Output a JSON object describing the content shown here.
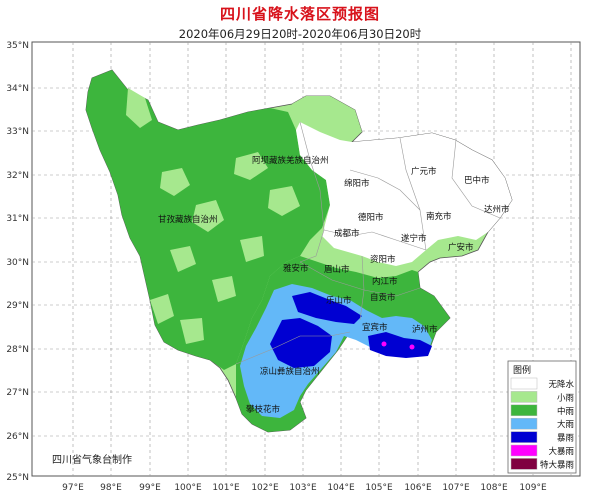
{
  "title": "四川省降水落区预报图",
  "subtitle": "2020年06月29日20时-2020年06月30日20时",
  "lat_ticks": [
    "35°N",
    "34°N",
    "33°N",
    "32°N",
    "31°N",
    "30°N",
    "29°N",
    "28°N",
    "27°N",
    "26°N",
    "25°N"
  ],
  "lon_ticks": [
    "97°E",
    "98°E",
    "99°E",
    "100°E",
    "101°E",
    "102°E",
    "103°E",
    "104°E",
    "105°E",
    "106°E",
    "107°E",
    "108°E",
    "109°E"
  ],
  "regions": {
    "aba": "阿坝藏族羌族自治州",
    "ganzi": "甘孜藏族自治州",
    "liangshan": "凉山彝族自治州"
  },
  "cities": {
    "guangyuan": "广元市",
    "bazhong": "巴中市",
    "mianyang": "绵阳市",
    "dazhou": "达州市",
    "deyang": "德阳市",
    "nanchong": "南充市",
    "chengdu": "成都市",
    "suining": "遂宁市",
    "guangan": "广安市",
    "ziyang": "资阳市",
    "yaan": "雅安市",
    "meishan": "眉山市",
    "neijiang": "内江市",
    "leshan": "乐山市",
    "zigong": "自贡市",
    "yibin": "宜宾市",
    "luzhou": "泸州市",
    "panzhihua": "攀枝花市"
  },
  "maker": "四川省气象台制作",
  "legend": {
    "title": "图例",
    "items": [
      {
        "label": "无降水",
        "color": "#ffffff"
      },
      {
        "label": "小雨",
        "color": "#a6e88e"
      },
      {
        "label": "中雨",
        "color": "#3db53d"
      },
      {
        "label": "大雨",
        "color": "#63b8f8"
      },
      {
        "label": "暴雨",
        "color": "#0000d2"
      },
      {
        "label": "大暴雨",
        "color": "#ff00ff"
      },
      {
        "label": "特大暴雨",
        "color": "#800040"
      }
    ]
  }
}
